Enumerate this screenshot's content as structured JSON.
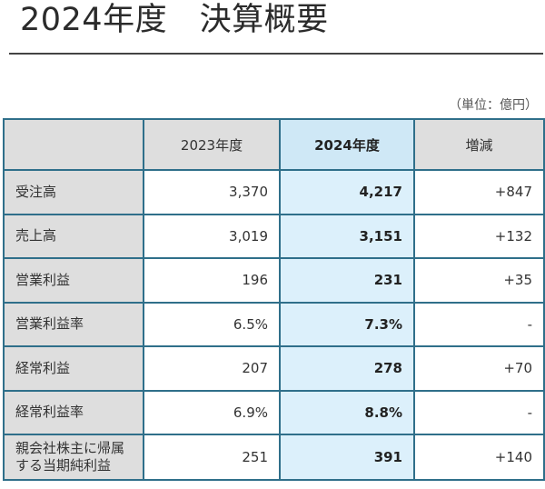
{
  "title": "2024年度　決算概要",
  "unit_note": "（単位：億円）",
  "table": {
    "headers": [
      "",
      "2023年度",
      "2024年度",
      "増減"
    ],
    "rows": [
      {
        "label": "受注高",
        "fy2023": "3,370",
        "fy2024": "4,217",
        "change": "+847"
      },
      {
        "label": "売上高",
        "fy2023": "3,019",
        "fy2024": "3,151",
        "change": "+132"
      },
      {
        "label": "営業利益",
        "fy2023": "196",
        "fy2024": "231",
        "change": "+35"
      },
      {
        "label": "営業利益率",
        "fy2023": "6.5%",
        "fy2024": "7.3%",
        "change": "-"
      },
      {
        "label": "経常利益",
        "fy2023": "207",
        "fy2024": "278",
        "change": "+70"
      },
      {
        "label": "経常利益率",
        "fy2023": "6.9%",
        "fy2024": "8.8%",
        "change": "-"
      },
      {
        "label": "親会社株主に帰属する当期純利益",
        "fy2023": "251",
        "fy2024": "391",
        "change": "+140"
      }
    ]
  }
}
